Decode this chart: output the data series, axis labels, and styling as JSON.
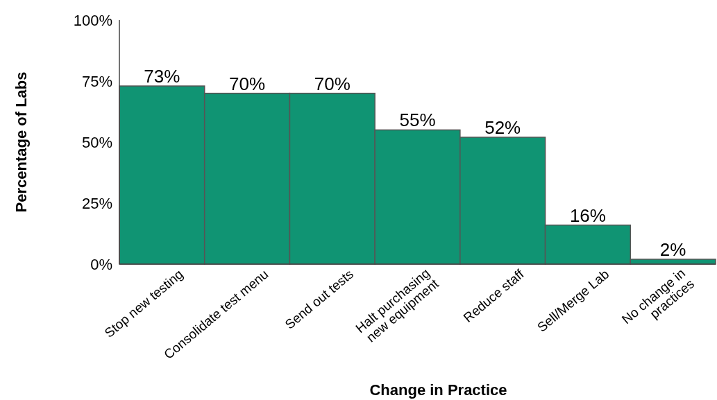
{
  "chart_data": {
    "type": "bar",
    "xlabel": "Change in Practice",
    "ylabel": "Percentage of Labs",
    "categories": [
      "Stop new testing",
      "Consolidate test menu",
      "Send out tests",
      "Halt purchasing\nnew equipment",
      "Reduce staff",
      "Sell/Merge Lab",
      "No change in\npractices"
    ],
    "values": [
      73,
      70,
      70,
      55,
      52,
      16,
      2
    ],
    "color": "#109473",
    "value_labels": [
      "73%",
      "70%",
      "70%",
      "55%",
      "52%",
      "16%",
      "2%"
    ],
    "ylim": [
      0,
      100
    ],
    "yticks": [
      {
        "value": 0,
        "label": "0%"
      },
      {
        "value": 25,
        "label": "25%"
      },
      {
        "value": 50,
        "label": "50%"
      },
      {
        "value": 75,
        "label": "75%"
      },
      {
        "value": 100,
        "label": "100%"
      }
    ]
  }
}
